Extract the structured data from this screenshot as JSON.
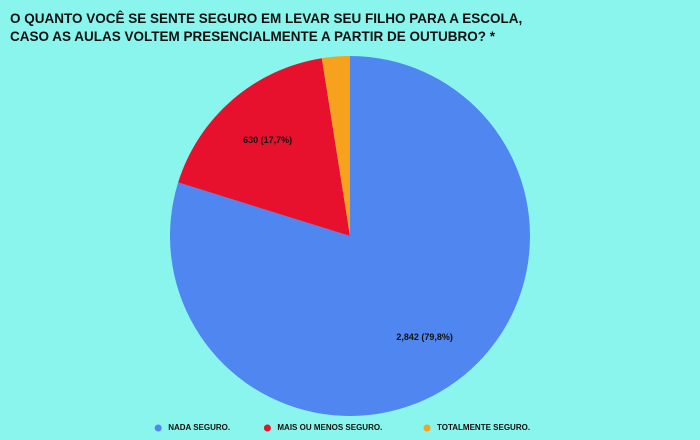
{
  "chart_data": {
    "type": "pie",
    "title": "O QUANTO VOCÊ SE SENTE SEGURO EM LEVAR SEU FILHO PARA A ESCOLA, CASO AS AULAS VOLTEM PRESENCIALMENTE A PARTIR DE OUTUBRO? *",
    "categories": [
      "NADA SEGURO.",
      "MAIS OU MENOS SEGURO.",
      "TOTALMENTE SEGURO."
    ],
    "values": [
      2842,
      630,
      89
    ],
    "value_labels": [
      "2,842 (79,8%)",
      "630 (17,7%)",
      null
    ],
    "colors": [
      "#4f86f0",
      "#e8112d",
      "#f6a21c"
    ],
    "legend": "bottom"
  }
}
